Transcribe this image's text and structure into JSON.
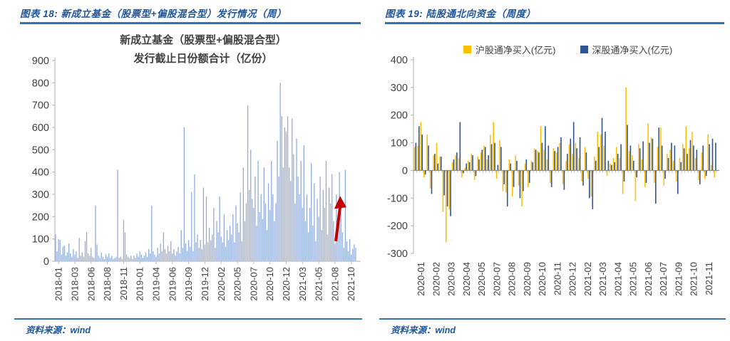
{
  "page": {
    "background": "#FFFFFF",
    "accent_color": "#2E75B6",
    "header_text_color": "#1F5597"
  },
  "figures": [
    {
      "header": "图表 18: 新成立基金（股票型+偏股混合型）发行情况（周）",
      "source_label": "资料来源：wind"
    },
    {
      "header": "图表 19: 陆股通北向资金（周度）",
      "source_label": "资料来源：wind"
    }
  ],
  "chart_data": [
    {
      "type": "bar",
      "title_lines": [
        "新成立基金（股票型+偏股混合型）",
        "发行截止日份额合计（亿份）"
      ],
      "xlabel": "",
      "ylabel": "",
      "ylim": [
        0,
        900
      ],
      "ytick_step": 100,
      "yticks": [
        0,
        100,
        200,
        300,
        400,
        500,
        600,
        700,
        800,
        900
      ],
      "grid": false,
      "legend_position": "none",
      "bar_color": "#8EA9DB",
      "axis_color": "#BFBFBF",
      "tick_label_color": "#404040",
      "x_tick_labels": [
        "2018-01",
        "2018-03",
        "2018-06",
        "2018-08",
        "2018-11",
        "2019-01",
        "2019-04",
        "2019-06",
        "2019-09",
        "2019-12",
        "2020-02",
        "2020-05",
        "2020-07",
        "2020-10",
        "2020-12",
        "2021-03",
        "2021-05",
        "2021-08",
        "2021-10"
      ],
      "values": [
        120,
        45,
        100,
        95,
        30,
        65,
        70,
        25,
        40,
        80,
        35,
        20,
        55,
        30,
        45,
        15,
        105,
        25,
        40,
        20,
        90,
        130,
        35,
        25,
        60,
        20,
        15,
        250,
        75,
        25,
        15,
        40,
        20,
        10,
        30,
        20,
        35,
        15,
        25,
        10,
        15,
        20,
        410,
        15,
        20,
        10,
        185,
        130,
        30,
        20,
        15,
        25,
        10,
        25,
        15,
        35,
        20,
        45,
        30,
        15,
        25,
        40,
        20,
        55,
        35,
        250,
        45,
        30,
        20,
        60,
        35,
        80,
        45,
        130,
        55,
        35,
        70,
        45,
        90,
        35,
        55,
        25,
        45,
        65,
        35,
        140,
        60,
        600,
        80,
        45,
        95,
        65,
        310,
        45,
        390,
        85,
        120,
        60,
        95,
        55,
        330,
        75,
        290,
        85,
        150,
        95,
        120,
        240,
        60,
        180,
        130,
        290,
        110,
        85,
        210,
        65,
        140,
        95,
        160,
        120,
        210,
        85,
        250,
        170,
        130,
        310,
        90,
        420,
        180,
        260,
        700,
        320,
        500,
        280,
        240,
        380,
        160,
        450,
        220,
        300,
        190,
        420,
        260,
        140,
        350,
        230,
        450,
        300,
        180,
        260,
        540,
        380,
        800,
        650,
        420,
        600,
        580,
        650,
        420,
        360,
        640,
        480,
        260,
        550,
        380,
        300,
        450,
        240,
        520,
        180,
        300,
        130,
        240,
        440,
        160,
        350,
        90,
        280,
        200,
        380,
        140,
        320,
        240,
        450,
        120,
        330,
        260,
        390,
        180,
        80,
        300,
        150,
        400,
        220,
        130,
        60,
        410,
        90,
        45,
        100,
        30,
        55,
        75,
        60
      ],
      "annotation": {
        "shape": "up-arrow",
        "color": "#C00000",
        "near_x_label": "2021-10",
        "from_value": 90,
        "to_value": 280
      }
    },
    {
      "type": "bar",
      "title_lines": [],
      "xlabel": "",
      "ylabel": "",
      "ylim": [
        -300,
        400
      ],
      "ytick_step": 100,
      "yticks": [
        -300,
        -200,
        -100,
        0,
        100,
        200,
        300,
        400
      ],
      "grid": false,
      "legend_position": "top",
      "axis_color": "#BFBFBF",
      "zero_line_color": "#7F7F7F",
      "tick_label_color": "#404040",
      "x_tick_labels": [
        "2020-01",
        "2020-02",
        "2020-03",
        "2020-04",
        "2020-05",
        "2020-07",
        "2020-08",
        "2020-09",
        "2020-10",
        "2020-11",
        "2020-12",
        "2021-02",
        "2021-03",
        "2021-04",
        "2021-05",
        "2021-06",
        "2021-07",
        "2021-09",
        "2021-10",
        "2021-11"
      ],
      "series": [
        {
          "name": "沪股通净买入(亿元)",
          "color": "#FFC000",
          "values": [
            85,
            90,
            175,
            -25,
            130,
            -65,
            55,
            100,
            50,
            -150,
            -260,
            -140,
            30,
            55,
            45,
            -25,
            10,
            35,
            60,
            -35,
            50,
            65,
            90,
            40,
            130,
            175,
            -30,
            110,
            -75,
            -80,
            40,
            -95,
            55,
            -55,
            -130,
            25,
            -60,
            35,
            80,
            70,
            160,
            75,
            40,
            -45,
            80,
            65,
            100,
            -50,
            35,
            95,
            60,
            100,
            45,
            -40,
            85,
            -30,
            -95,
            50,
            140,
            130,
            90,
            -20,
            25,
            45,
            85,
            45,
            -85,
            300,
            70,
            55,
            -110,
            95,
            40,
            -60,
            170,
            120,
            -45,
            85,
            155,
            -55,
            60,
            75,
            35,
            -40,
            45,
            95,
            160,
            80,
            140,
            45,
            -35,
            65,
            -30,
            130,
            20,
            -25
          ]
        },
        {
          "name": "深股通净买入(亿元)",
          "color": "#2F5597",
          "values": [
            100,
            160,
            130,
            -15,
            90,
            -85,
            60,
            25,
            50,
            -90,
            -130,
            -165,
            40,
            65,
            175,
            -10,
            25,
            30,
            55,
            -20,
            40,
            75,
            85,
            55,
            95,
            100,
            20,
            85,
            -50,
            -130,
            25,
            -60,
            35,
            -100,
            -75,
            40,
            -45,
            30,
            75,
            65,
            100,
            160,
            90,
            -60,
            70,
            85,
            120,
            -70,
            60,
            115,
            175,
            80,
            120,
            -55,
            65,
            -100,
            -140,
            35,
            85,
            190,
            140,
            35,
            20,
            30,
            60,
            95,
            -40,
            165,
            90,
            35,
            -25,
            80,
            105,
            -45,
            100,
            115,
            -120,
            155,
            90,
            -30,
            45,
            100,
            90,
            -85,
            30,
            80,
            60,
            110,
            90,
            75,
            -50,
            90,
            -20,
            95,
            115,
            100
          ]
        }
      ]
    }
  ]
}
